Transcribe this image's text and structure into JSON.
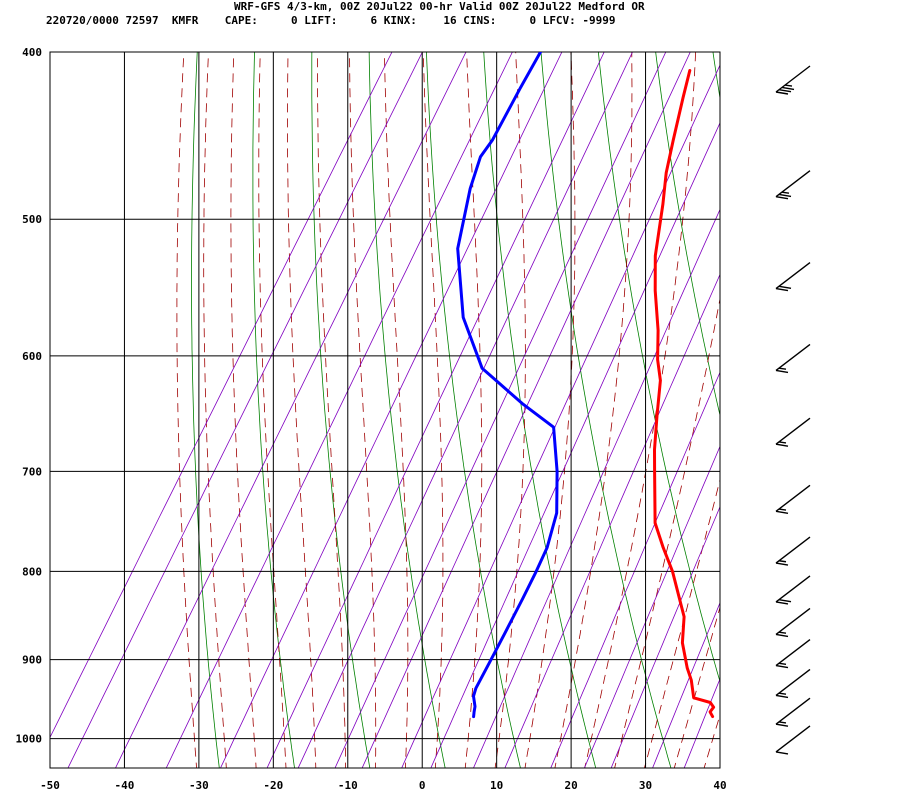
{
  "header": {
    "title": "WRF-GFS 4/3-km, 00Z 20Jul22 00-hr Valid 00Z 20Jul22 Medford OR",
    "stats": "220720/0000 72597  KMFR    CAPE:     0 LIFT:     6 KINX:    16 CINS:     0 LFCV: -9999"
  },
  "chart_data": {
    "type": "line",
    "subtype": "skew-T log-P sounding",
    "xlabel": "",
    "ylabel": "",
    "x_ticks": [
      "-50",
      "-40",
      "-30",
      "-20",
      "-10",
      "0",
      "10",
      "20",
      "30",
      "40"
    ],
    "p_ticks": [
      "400",
      "500",
      "600",
      "700",
      "800",
      "900",
      "1000"
    ],
    "xlim": [
      -50,
      40
    ],
    "plim": [
      1040,
      400
    ],
    "grid": true,
    "colors": {
      "temperature": "#ff0000",
      "dewpoint": "#0000ff",
      "dry_adiabat": "#008000",
      "moist_adiabat": "#a00000",
      "mixing_ratio": "#8000c0",
      "grid": "#000000"
    },
    "series": [
      {
        "role": "temperature",
        "points": [
          [
            971,
            35.0
          ],
          [
            965,
            34.3
          ],
          [
            959,
            34.4
          ],
          [
            953,
            33.6
          ],
          [
            947,
            31.0
          ],
          [
            925,
            29.3
          ],
          [
            910,
            27.8
          ],
          [
            880,
            25.2
          ],
          [
            850,
            23.4
          ],
          [
            800,
            18.3
          ],
          [
            775,
            15.2
          ],
          [
            750,
            12.2
          ],
          [
            700,
            8.1
          ],
          [
            680,
            6.4
          ],
          [
            650,
            4.1
          ],
          [
            620,
            1.8
          ],
          [
            603,
            -0.2
          ],
          [
            580,
            -2.4
          ],
          [
            550,
            -5.9
          ],
          [
            525,
            -8.6
          ],
          [
            490,
            -11.6
          ],
          [
            470,
            -13.6
          ],
          [
            450,
            -15.2
          ],
          [
            425,
            -17.2
          ],
          [
            410,
            -18.4
          ]
        ]
      },
      {
        "role": "dewpoint",
        "points": [
          [
            971,
            2.9
          ],
          [
            965,
            2.6
          ],
          [
            958,
            2.3
          ],
          [
            945,
            1.3
          ],
          [
            935,
            1.0
          ],
          [
            900,
            0.8
          ],
          [
            870,
            0.6
          ],
          [
            830,
            0.3
          ],
          [
            800,
            0.0
          ],
          [
            775,
            -0.4
          ],
          [
            740,
            -1.8
          ],
          [
            700,
            -5.0
          ],
          [
            660,
            -8.9
          ],
          [
            640,
            -14.8
          ],
          [
            610,
            -23.1
          ],
          [
            570,
            -29.6
          ],
          [
            520,
            -35.7
          ],
          [
            480,
            -38.7
          ],
          [
            460,
            -39.8
          ],
          [
            450,
            -39.5
          ],
          [
            420,
            -39.8
          ],
          [
            400,
            -39.9
          ]
        ]
      }
    ],
    "wind_barbs": [
      {
        "pressure": 400,
        "speed_kt": 35
      },
      {
        "pressure": 460,
        "speed_kt": 25
      },
      {
        "pressure": 520,
        "speed_kt": 20
      },
      {
        "pressure": 580,
        "speed_kt": 15
      },
      {
        "pressure": 640,
        "speed_kt": 15
      },
      {
        "pressure": 700,
        "speed_kt": 15
      },
      {
        "pressure": 750,
        "speed_kt": 15
      },
      {
        "pressure": 790,
        "speed_kt": 20
      },
      {
        "pressure": 825,
        "speed_kt": 15
      },
      {
        "pressure": 860,
        "speed_kt": 15
      },
      {
        "pressure": 895,
        "speed_kt": 15
      },
      {
        "pressure": 930,
        "speed_kt": 15
      },
      {
        "pressure": 965,
        "speed_kt": 10
      }
    ]
  }
}
